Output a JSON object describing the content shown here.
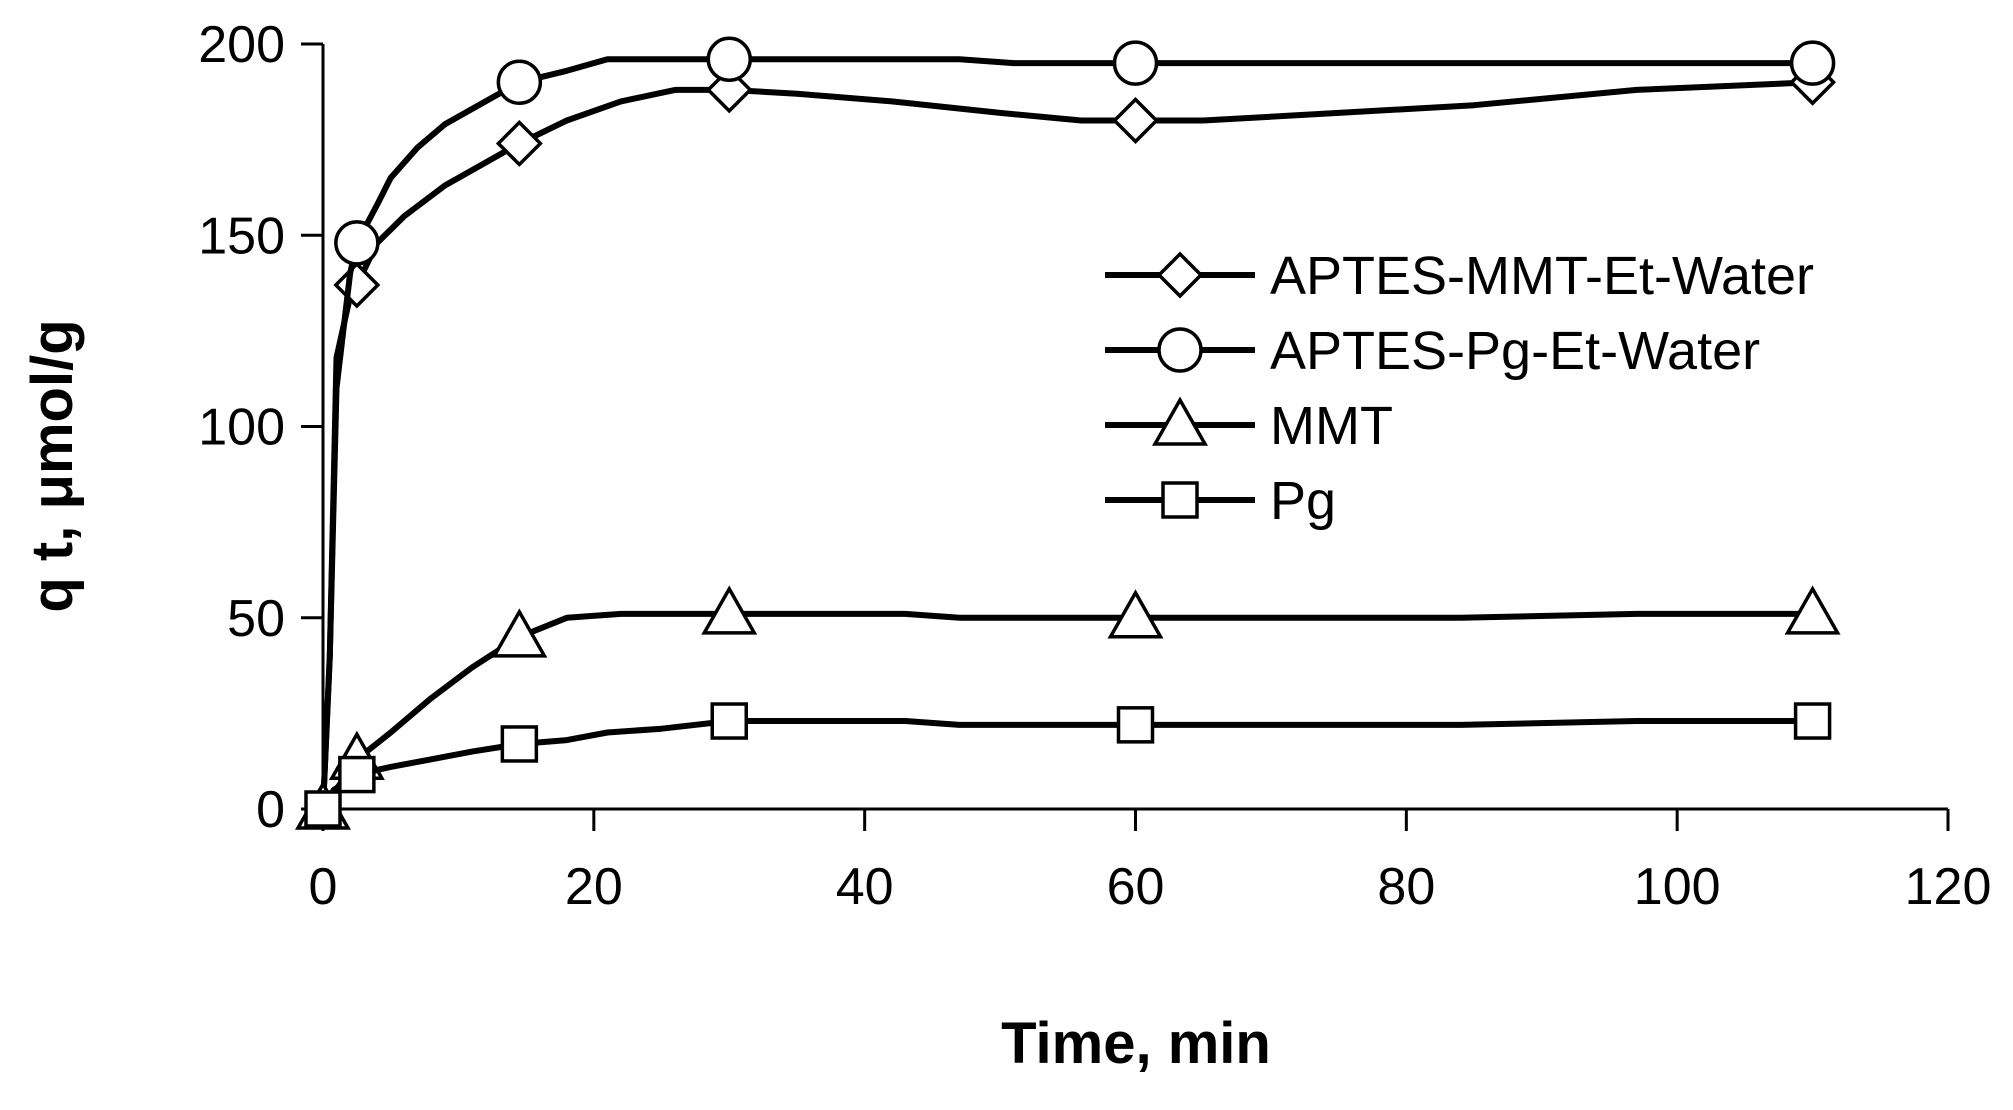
{
  "chart_data": {
    "type": "line",
    "title": "",
    "xlabel": "Time, min",
    "ylabel": "q t, μmol/g",
    "xlim": [
      0,
      120
    ],
    "ylim": [
      0,
      200
    ],
    "xticks": [
      0,
      20,
      40,
      60,
      80,
      100,
      120
    ],
    "yticks": [
      0,
      50,
      100,
      150,
      200
    ],
    "grid": false,
    "legend_position": "center-right",
    "line_color": "#000000",
    "series": [
      {
        "name": "APTES-MMT-Et-Water",
        "marker": "diamond",
        "curve": [
          [
            0,
            0
          ],
          [
            0.5,
            40
          ],
          [
            1,
            118
          ],
          [
            2,
            134
          ],
          [
            2.5,
            137
          ],
          [
            4,
            148
          ],
          [
            6,
            155
          ],
          [
            9,
            163
          ],
          [
            12,
            169
          ],
          [
            14.5,
            174
          ],
          [
            18,
            180
          ],
          [
            22,
            185
          ],
          [
            26,
            188
          ],
          [
            30,
            188
          ],
          [
            35,
            187
          ],
          [
            42,
            185
          ],
          [
            50,
            182
          ],
          [
            56,
            180
          ],
          [
            60,
            180
          ],
          [
            65,
            180
          ],
          [
            75,
            182
          ],
          [
            85,
            184
          ],
          [
            97,
            188
          ],
          [
            110,
            190
          ]
        ],
        "points": [
          [
            2.5,
            137
          ],
          [
            14.5,
            174
          ],
          [
            30,
            188
          ],
          [
            60,
            180
          ],
          [
            110,
            190
          ]
        ]
      },
      {
        "name": "APTES-Pg-Et-Water",
        "marker": "circle",
        "curve": [
          [
            0,
            0
          ],
          [
            0.5,
            40
          ],
          [
            1,
            110
          ],
          [
            2,
            140
          ],
          [
            2.5,
            148
          ],
          [
            4,
            158
          ],
          [
            5,
            165
          ],
          [
            7,
            173
          ],
          [
            9,
            179
          ],
          [
            12,
            185
          ],
          [
            14.5,
            190
          ],
          [
            18,
            193
          ],
          [
            21,
            196
          ],
          [
            30,
            196
          ],
          [
            47,
            196
          ],
          [
            51,
            195
          ],
          [
            60,
            195
          ],
          [
            110,
            195
          ]
        ],
        "points": [
          [
            2.5,
            148
          ],
          [
            14.5,
            190
          ],
          [
            30,
            196
          ],
          [
            60,
            195
          ],
          [
            110,
            195
          ]
        ]
      },
      {
        "name": "MMT",
        "marker": "triangle",
        "curve": [
          [
            0,
            0
          ],
          [
            2.5,
            13
          ],
          [
            5,
            20
          ],
          [
            8,
            29
          ],
          [
            11,
            37
          ],
          [
            14.5,
            45
          ],
          [
            18,
            50
          ],
          [
            22,
            51
          ],
          [
            30,
            51
          ],
          [
            43,
            51
          ],
          [
            47,
            50
          ],
          [
            60,
            50
          ],
          [
            84,
            50
          ],
          [
            97,
            51
          ],
          [
            110,
            51
          ]
        ],
        "points": [
          [
            0,
            0
          ],
          [
            2.5,
            13
          ],
          [
            14.5,
            45
          ],
          [
            30,
            51
          ],
          [
            60,
            50
          ],
          [
            110,
            51
          ]
        ]
      },
      {
        "name": "Pg",
        "marker": "square",
        "curve": [
          [
            0,
            0
          ],
          [
            0.8,
            5
          ],
          [
            2.5,
            9
          ],
          [
            5,
            11
          ],
          [
            8,
            13
          ],
          [
            11,
            15
          ],
          [
            14.5,
            17
          ],
          [
            18,
            18
          ],
          [
            21,
            20
          ],
          [
            25,
            21
          ],
          [
            30,
            23
          ],
          [
            43,
            23
          ],
          [
            47,
            22
          ],
          [
            60,
            22
          ],
          [
            84,
            22
          ],
          [
            97,
            23
          ],
          [
            110,
            23
          ]
        ],
        "points": [
          [
            0,
            0
          ],
          [
            2.5,
            9
          ],
          [
            14.5,
            17
          ],
          [
            30,
            23
          ],
          [
            60,
            22
          ],
          [
            110,
            23
          ]
        ]
      }
    ]
  }
}
